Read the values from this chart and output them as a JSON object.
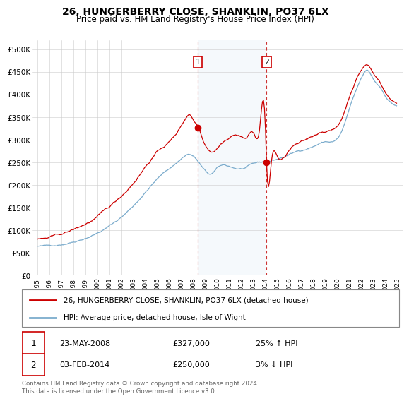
{
  "title": "26, HUNGERBERRY CLOSE, SHANKLIN, PO37 6LX",
  "subtitle": "Price paid vs. HM Land Registry's House Price Index (HPI)",
  "legend_line1": "26, HUNGERBERRY CLOSE, SHANKLIN, PO37 6LX (detached house)",
  "legend_line2": "HPI: Average price, detached house, Isle of Wight",
  "annotation1_date": "23-MAY-2008",
  "annotation1_price": "£327,000",
  "annotation1_hpi": "25% ↑ HPI",
  "annotation2_date": "03-FEB-2014",
  "annotation2_price": "£250,000",
  "annotation2_hpi": "3% ↓ HPI",
  "footer": "Contains HM Land Registry data © Crown copyright and database right 2024.\nThis data is licensed under the Open Government Licence v3.0.",
  "vline1_x": 2008.38,
  "vline2_x": 2014.09,
  "marker1_price": 327000,
  "marker1_x": 2008.38,
  "marker2_price": 250000,
  "marker2_x": 2014.09,
  "red_color": "#cc0000",
  "blue_color": "#7aabcc",
  "highlight_color": "#ddeeff",
  "vline_color": "#cc3333",
  "ylim": [
    0,
    520000
  ],
  "yticks": [
    0,
    50000,
    100000,
    150000,
    200000,
    250000,
    300000,
    350000,
    400000,
    450000,
    500000
  ],
  "xlim": [
    1994.6,
    2025.4
  ],
  "xticks": [
    1995,
    1996,
    1997,
    1998,
    1999,
    2000,
    2001,
    2002,
    2003,
    2004,
    2005,
    2006,
    2007,
    2008,
    2009,
    2010,
    2011,
    2012,
    2013,
    2014,
    2015,
    2016,
    2017,
    2018,
    2019,
    2020,
    2021,
    2022,
    2023,
    2024,
    2025
  ]
}
